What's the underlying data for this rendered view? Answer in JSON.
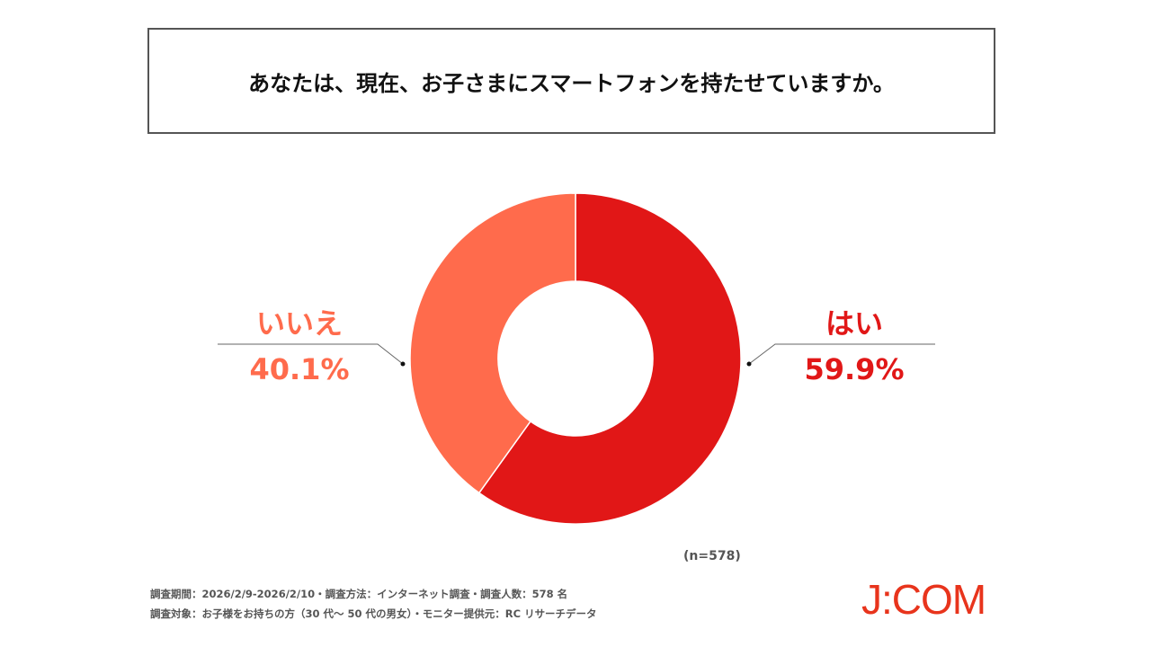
{
  "title": "あなたは、現在、お子さまにスマートフォンを持たせていますか。",
  "chart_data": {
    "type": "pie",
    "variant": "donut",
    "title": "あなたは、現在、お子さまにスマートフォンを持たせていますか。",
    "categories": [
      "はい",
      "いいえ"
    ],
    "values": [
      59.9,
      40.1
    ],
    "labels": [
      "59.9%",
      "40.1%"
    ],
    "colors": [
      "#E11717",
      "#FF6B4C"
    ],
    "start": "top",
    "direction": "clockwise",
    "legend": "none"
  },
  "sample": "(n=578)",
  "footer": {
    "line1": "調査期間：2026/2/9-2026/2/10・調査方法：インターネット調査・調査人数：578 名",
    "line2": "調査対象：お子様をお持ちの方（30 代～ 50 代の男女）・モニター提供元：RC リサーチデータ"
  },
  "logo": "J:COM"
}
